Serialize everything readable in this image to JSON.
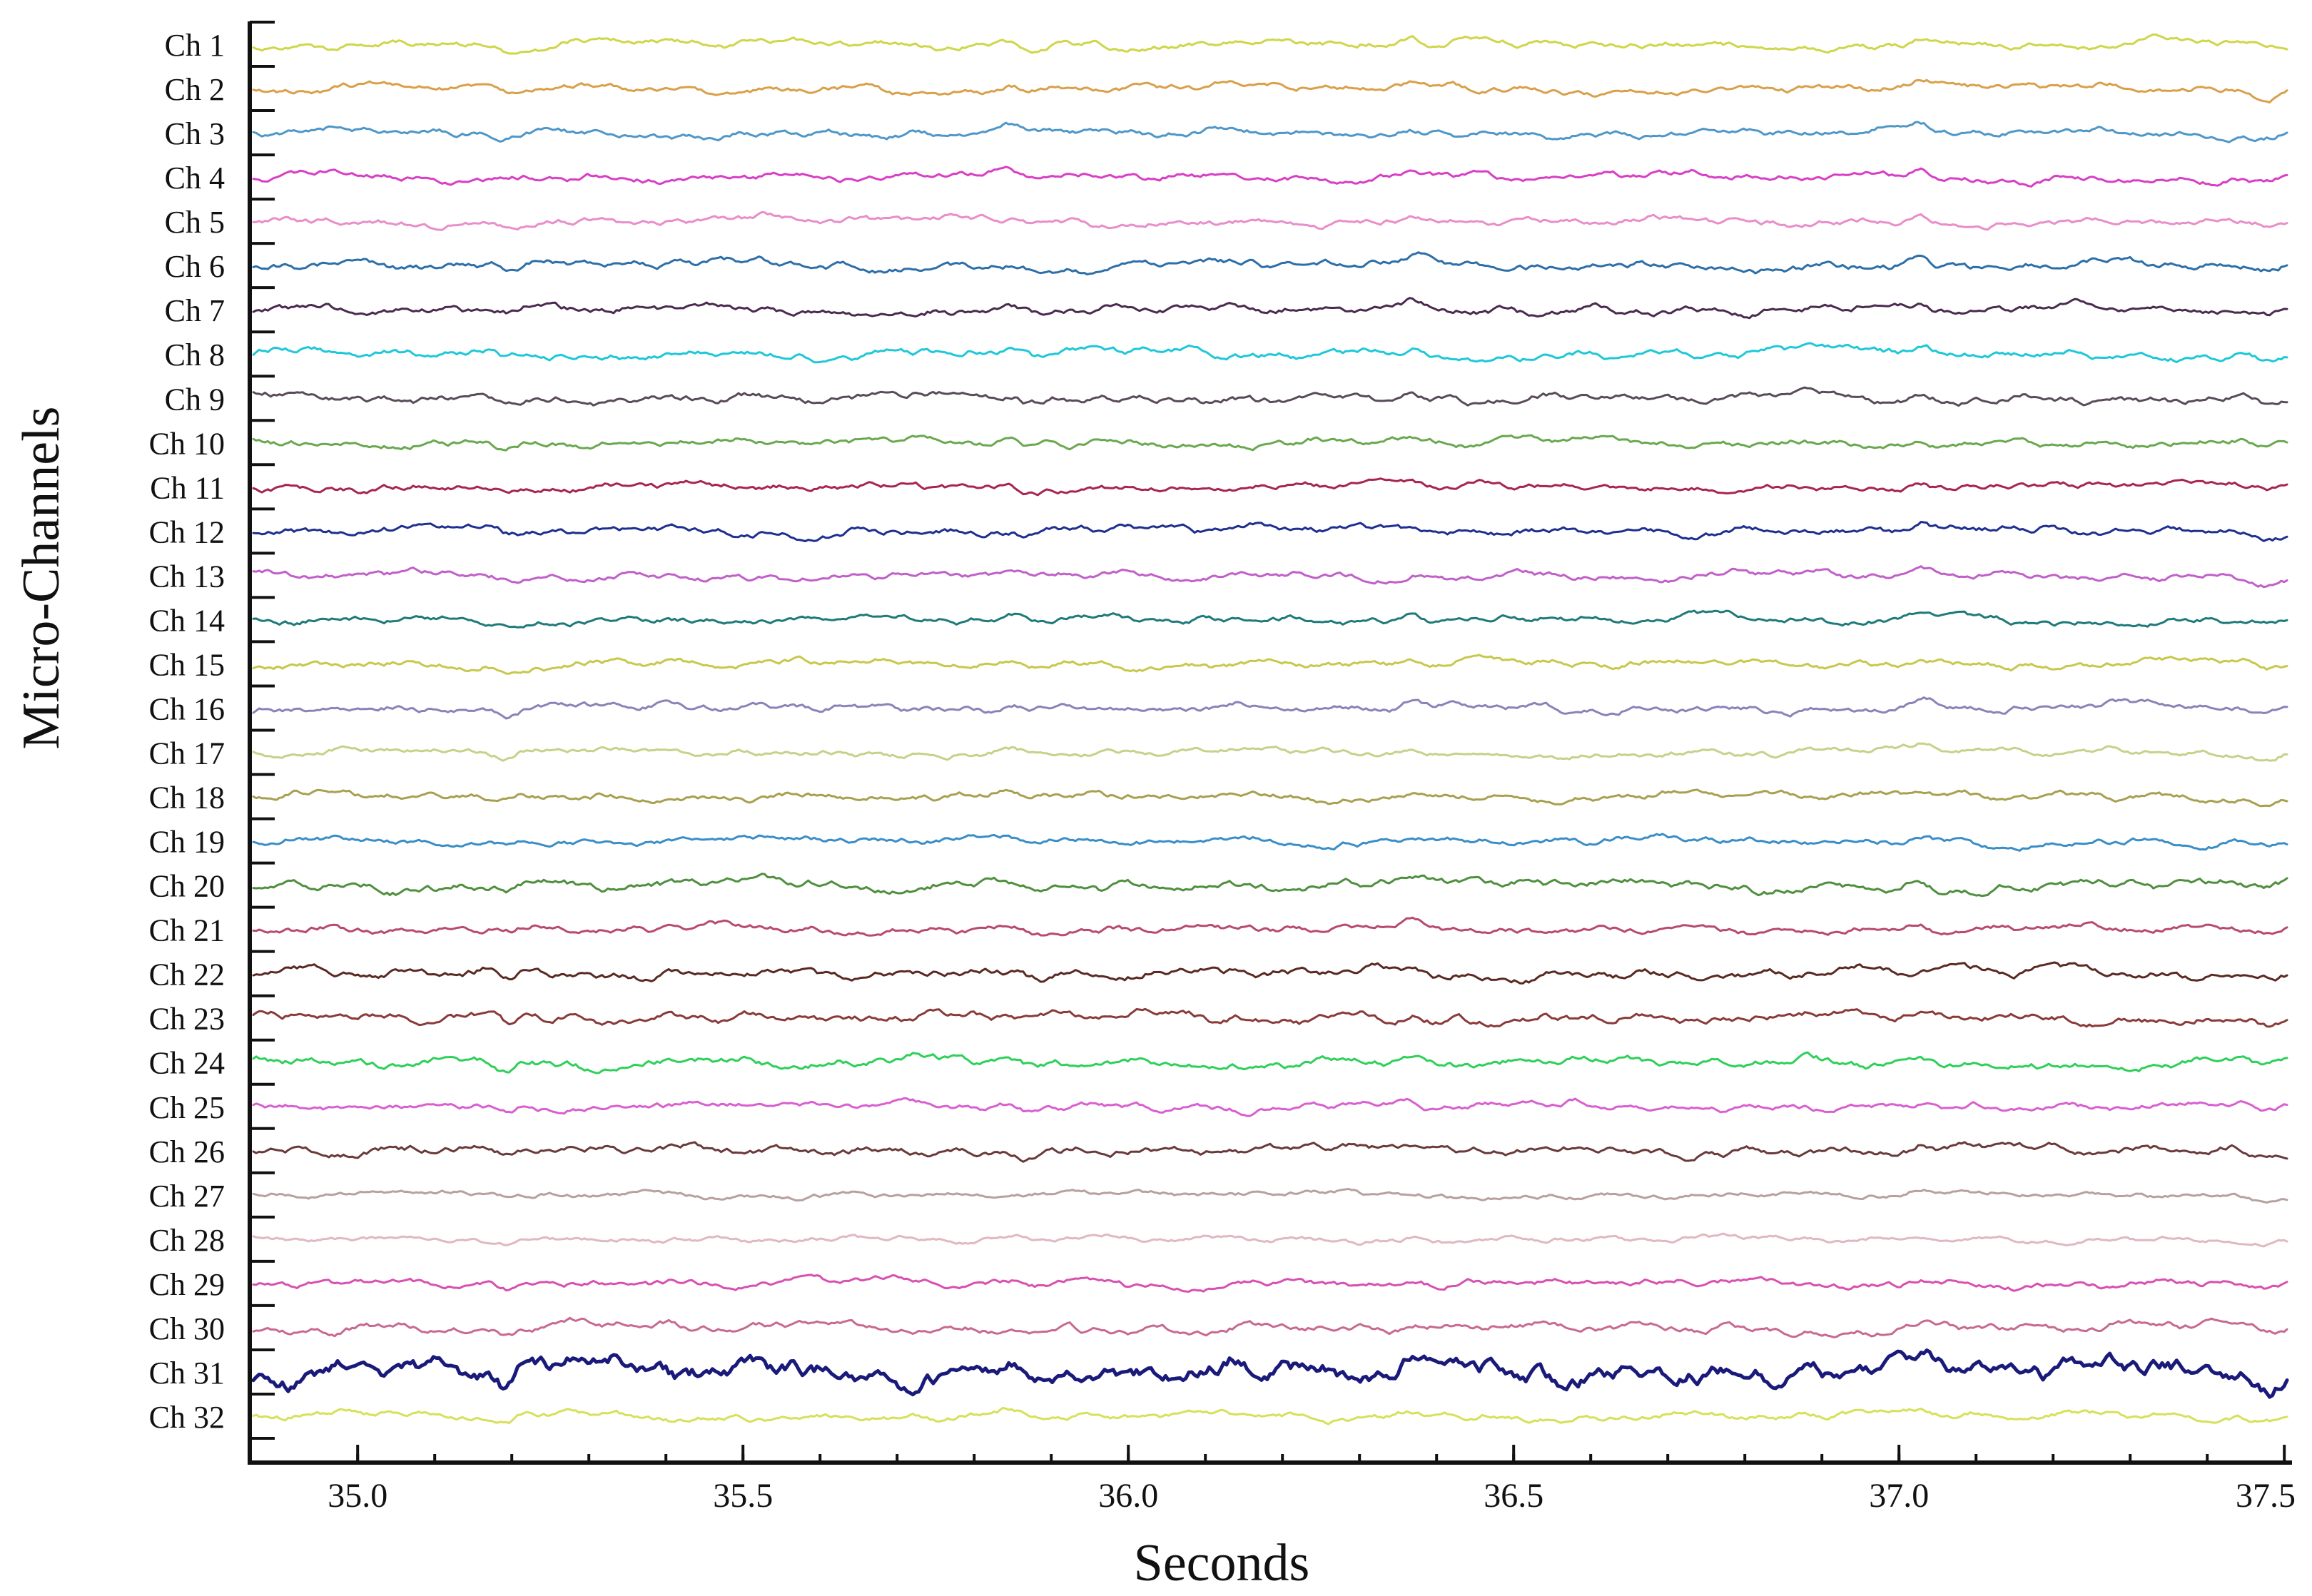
{
  "chart_data": {
    "type": "line",
    "title": "",
    "xlabel": "Seconds",
    "ylabel": "Micro-Channels",
    "xlim": [
      34.86,
      37.51
    ],
    "xticks": [
      35.0,
      35.5,
      36.0,
      36.5,
      37.0,
      37.5
    ],
    "xtick_labels": [
      "35.0",
      "35.5",
      "36.0",
      "36.5",
      "37.0",
      "37.5"
    ],
    "grid": false,
    "legend": "none",
    "series": [
      {
        "name": "Ch 1",
        "color": "#cfd64a",
        "amplitude": 0.8
      },
      {
        "name": "Ch 2",
        "color": "#d9a04a",
        "amplitude": 0.8
      },
      {
        "name": "Ch 3",
        "color": "#4f97c8",
        "amplitude": 0.8
      },
      {
        "name": "Ch 4",
        "color": "#d83fc4",
        "amplitude": 0.8
      },
      {
        "name": "Ch 5",
        "color": "#e88ec9",
        "amplitude": 0.8
      },
      {
        "name": "Ch 6",
        "color": "#2d6fa8",
        "amplitude": 0.9
      },
      {
        "name": "Ch 7",
        "color": "#4a2a4f",
        "amplitude": 0.9
      },
      {
        "name": "Ch 8",
        "color": "#1fc8d8",
        "amplitude": 0.9
      },
      {
        "name": "Ch 9",
        "color": "#5a4a5a",
        "amplitude": 0.9
      },
      {
        "name": "Ch 10",
        "color": "#6aa84f",
        "amplitude": 0.8
      },
      {
        "name": "Ch 11",
        "color": "#a8264e",
        "amplitude": 0.8
      },
      {
        "name": "Ch 12",
        "color": "#1e2f8f",
        "amplitude": 0.9
      },
      {
        "name": "Ch 13",
        "color": "#c060c8",
        "amplitude": 0.8
      },
      {
        "name": "Ch 14",
        "color": "#1f7a7a",
        "amplitude": 0.8
      },
      {
        "name": "Ch 15",
        "color": "#c7c84c",
        "amplitude": 0.8
      },
      {
        "name": "Ch 16",
        "color": "#8c82b8",
        "amplitude": 0.8
      },
      {
        "name": "Ch 17",
        "color": "#c8d08a",
        "amplitude": 0.7
      },
      {
        "name": "Ch 18",
        "color": "#a8a050",
        "amplitude": 0.8
      },
      {
        "name": "Ch 19",
        "color": "#3a8ec8",
        "amplitude": 0.8
      },
      {
        "name": "Ch 20",
        "color": "#4f8f3f",
        "amplitude": 1.0
      },
      {
        "name": "Ch 21",
        "color": "#b84a70",
        "amplitude": 0.8
      },
      {
        "name": "Ch 22",
        "color": "#5a2a22",
        "amplitude": 1.0
      },
      {
        "name": "Ch 23",
        "color": "#8a3a3a",
        "amplitude": 1.0
      },
      {
        "name": "Ch 24",
        "color": "#2ed05a",
        "amplitude": 1.0
      },
      {
        "name": "Ch 25",
        "color": "#d860d0",
        "amplitude": 0.8
      },
      {
        "name": "Ch 26",
        "color": "#6a3a3a",
        "amplitude": 0.9
      },
      {
        "name": "Ch 27",
        "color": "#b8a0a0",
        "amplitude": 0.6
      },
      {
        "name": "Ch 28",
        "color": "#e0b8c0",
        "amplitude": 0.6
      },
      {
        "name": "Ch 29",
        "color": "#d850b0",
        "amplitude": 0.8
      },
      {
        "name": "Ch 30",
        "color": "#c86a90",
        "amplitude": 0.9
      },
      {
        "name": "Ch 31",
        "color": "#1a1a7a",
        "amplitude": 2.2
      },
      {
        "name": "Ch 32",
        "color": "#d8e05a",
        "amplitude": 0.8
      }
    ]
  }
}
